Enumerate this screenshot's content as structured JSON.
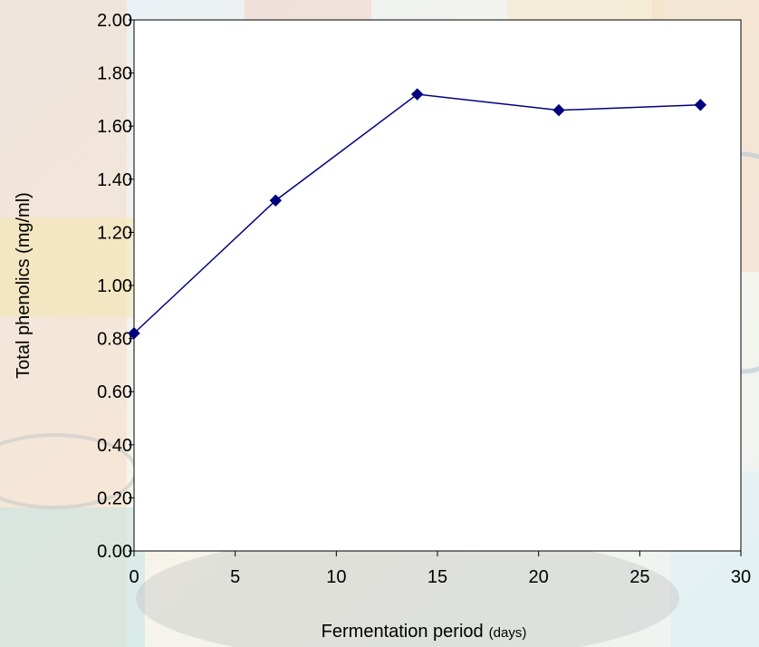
{
  "chart_data": {
    "type": "line",
    "xlabel": "Fermentation  period",
    "xlabel_unit": "(days)",
    "ylabel": "Total phenolics (mg/ml)",
    "xlim": [
      0,
      30
    ],
    "ylim": [
      0,
      2.0
    ],
    "x_ticks": [
      0,
      5,
      10,
      15,
      20,
      25,
      30
    ],
    "x_tick_labels": [
      "0",
      "5",
      "10",
      "15",
      "20",
      "25",
      "30"
    ],
    "y_ticks": [
      0,
      0.2,
      0.4,
      0.6,
      0.8,
      1.0,
      1.2,
      1.4,
      1.6,
      1.8,
      2.0
    ],
    "y_tick_labels": [
      "0.00",
      "0.20",
      "0.40",
      "0.60",
      "0.80",
      "1.00",
      "1.20",
      "1.40",
      "1.60",
      "1.80",
      "2.00"
    ],
    "grid": false,
    "legend": "none",
    "series": [
      {
        "x": [
          0,
          7,
          14,
          21,
          28
        ],
        "values": [
          0.82,
          1.32,
          1.72,
          1.66,
          1.68
        ],
        "color": "#00007f",
        "marker": "diamond"
      }
    ]
  }
}
